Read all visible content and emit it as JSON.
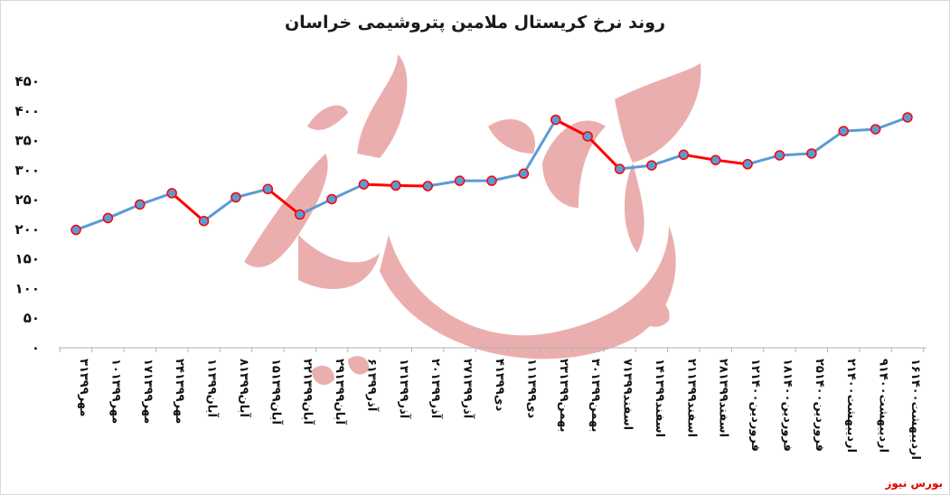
{
  "title": "روند نرخ کریستال ملامین پتروشیمی خراسان",
  "source_label": "بورس نیوز",
  "watermark_text": "بورس نیوز",
  "colors": {
    "line_up": "#5b9bd5",
    "line_down": "#ff0000",
    "marker_fill": "#5b9bd5",
    "marker_stroke": "#ff0000",
    "watermark": "#e8a0a0",
    "axis": "#b0b0b0",
    "source": "#e00000"
  },
  "chart_data": {
    "type": "line",
    "title": "روند نرخ کریستال ملامین پتروشیمی خراسان",
    "xlabel": "",
    "ylabel": "",
    "ylim": [
      0,
      450
    ],
    "ytick_step": 50,
    "ytick_labels": [
      "۰",
      "۵۰",
      "۱۰۰",
      "۱۵۰",
      "۲۰۰",
      "۲۵۰",
      "۳۰۰",
      "۳۵۰",
      "۴۰۰",
      "۴۵۰"
    ],
    "grid": false,
    "legend": "none",
    "categories": [
      "۳مهر۱۳۹۹",
      "۱۰مهر۱۳۹۹",
      "۱۷مهر۱۳۹۹",
      "۲۴مهر۱۳۹۹",
      "۱آبان۱۳۹۹",
      "۸آبان۱۳۹۹",
      "۱۵آبان۱۳۹۹",
      "۲۲آبان۱۳۹۹",
      "۲۹آبان۱۳۹۹",
      "۶آذر۱۳۹۹",
      "۱۳آذر۱۳۹۹",
      "۲۰آذر۱۳۹۹",
      "۲۷آذر۱۳۹۹",
      "۴دی۱۳۹۹",
      "۱۱دی۱۳۹۹",
      "۲۳بهمن۱۳۹۹",
      "۳۰بهمن۱۳۹۹",
      "۷اسفند۱۳۹۹",
      "۱۴اسفند۱۳۹۹",
      "۲۱اسفند۱۳۹۹",
      "۲۸اسفند۱۳۹۹",
      "۱۲فروردین۱۴۰۰",
      "۱۸فروردین۱۴۰۰",
      "۲۵فروردین۱۴۰۰",
      "۲اردیبهشت۱۴۰۰",
      "۹اردیبهشت۱۴۰۰",
      "۱۶اردیبهشت۱۴۰۰"
    ],
    "values": [
      199,
      219,
      242,
      261,
      214,
      254,
      268,
      225,
      251,
      276,
      274,
      273,
      282,
      282,
      294,
      385,
      357,
      302,
      308,
      326,
      317,
      310,
      325,
      328,
      366,
      369,
      389
    ]
  }
}
